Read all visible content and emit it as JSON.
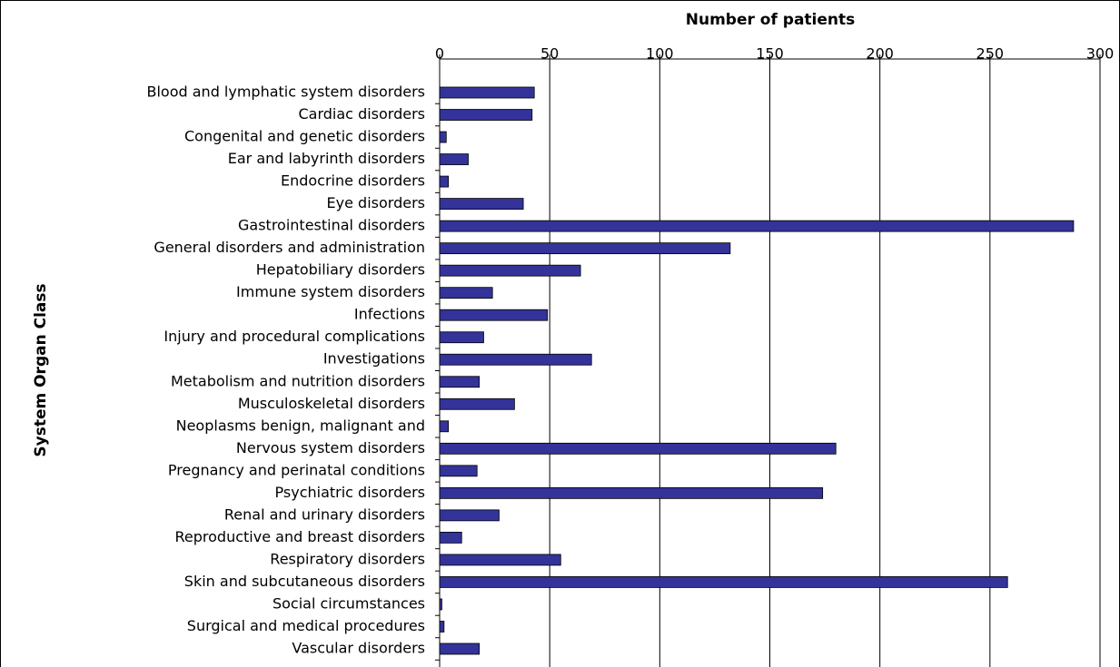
{
  "chart_data": {
    "type": "bar",
    "orientation": "horizontal",
    "x_label": "Number of patients",
    "y_label": "System Organ Class",
    "categories": [
      "Blood and lymphatic system disorders",
      "Cardiac disorders",
      "Congenital and genetic disorders",
      "Ear and labyrinth disorders",
      "Endocrine disorders",
      "Eye disorders",
      "Gastrointestinal disorders",
      "General disorders and administration",
      "Hepatobiliary disorders",
      "Immune system disorders",
      "Infections",
      "Injury and procedural complications",
      "Investigations",
      "Metabolism and nutrition disorders",
      "Musculoskeletal disorders",
      "Neoplasms benign, malignant and",
      "Nervous system disorders",
      "Pregnancy and perinatal conditions",
      "Psychiatric disorders",
      "Renal and urinary disorders",
      "Reproductive and breast disorders",
      "Respiratory disorders",
      "Skin and subcutaneous disorders",
      "Social circumstances",
      "Surgical and medical procedures",
      "Vascular disorders"
    ],
    "values": [
      43,
      42,
      3,
      13,
      4,
      38,
      288,
      132,
      64,
      24,
      49,
      20,
      69,
      18,
      34,
      4,
      180,
      17,
      174,
      27,
      10,
      55,
      258,
      1,
      2,
      18
    ],
    "color": "#333399",
    "xlim": [
      0,
      300
    ],
    "xticks": [
      0,
      50,
      100,
      150,
      200,
      250,
      300
    ],
    "grid": true
  }
}
